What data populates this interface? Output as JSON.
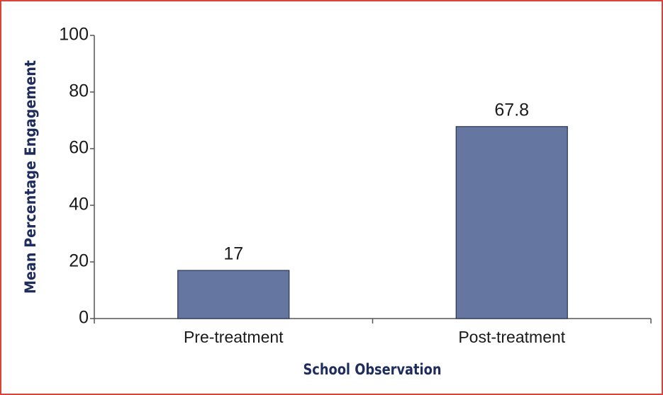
{
  "chart_data": {
    "type": "bar",
    "x_label": "School Observation",
    "y_label": "Mean Percentage Engagement",
    "categories": [
      "Pre-treatment",
      "Post-treatment"
    ],
    "values": [
      17,
      67.8
    ],
    "color": "#6577a0",
    "ylim": [
      0,
      100
    ],
    "yticks": [
      0,
      20,
      40,
      60,
      80,
      100
    ],
    "grid": false
  }
}
